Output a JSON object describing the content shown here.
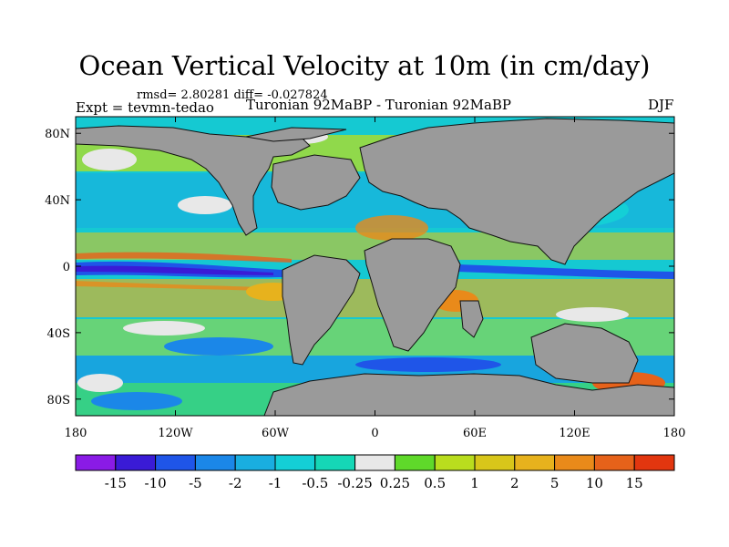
{
  "header": {
    "title": "Ocean Vertical Velocity at 10m (in cm/day)",
    "stats": "rmsd= 2.80281 diff= -0.027824",
    "expt": "Expt = tevmn-tedao",
    "center": "Turonian  92MaBP - Turonian  92MaBP",
    "season": "DJF"
  },
  "chart_data": {
    "type": "heatmap",
    "title": "Ocean Vertical Velocity at 10m (in cm/day)",
    "units": "cm/day",
    "xlim": [
      -180,
      180
    ],
    "ylim": [
      -90,
      90
    ],
    "x_ticks": [
      {
        "value": -180,
        "label": "180"
      },
      {
        "value": -120,
        "label": "120W"
      },
      {
        "value": -60,
        "label": "60W"
      },
      {
        "value": 0,
        "label": "0"
      },
      {
        "value": 60,
        "label": "60E"
      },
      {
        "value": 120,
        "label": "120E"
      },
      {
        "value": 180,
        "label": "180"
      }
    ],
    "y_ticks": [
      {
        "value": 80,
        "label": "80N"
      },
      {
        "value": 40,
        "label": "40N"
      },
      {
        "value": 0,
        "label": "0"
      },
      {
        "value": -40,
        "label": "40S"
      },
      {
        "value": -80,
        "label": "80S"
      }
    ],
    "colorbar": {
      "colors": [
        "#8a1be6",
        "#3a1bd6",
        "#1f55e8",
        "#1b87e8",
        "#19aee0",
        "#14cfd6",
        "#15d7b6",
        "#e8e8e8",
        "#5fd92a",
        "#b9dd1e",
        "#d8c61a",
        "#e7b21d",
        "#e98a1a",
        "#e6621a",
        "#e2360f"
      ],
      "labels": [
        "-15",
        "-10",
        "-5",
        "-2",
        "-1",
        "-0.5",
        "-0.25",
        "0.25",
        "0.5",
        "1",
        "2",
        "5",
        "10",
        "15"
      ]
    },
    "land_color": "#9a9a9a"
  }
}
